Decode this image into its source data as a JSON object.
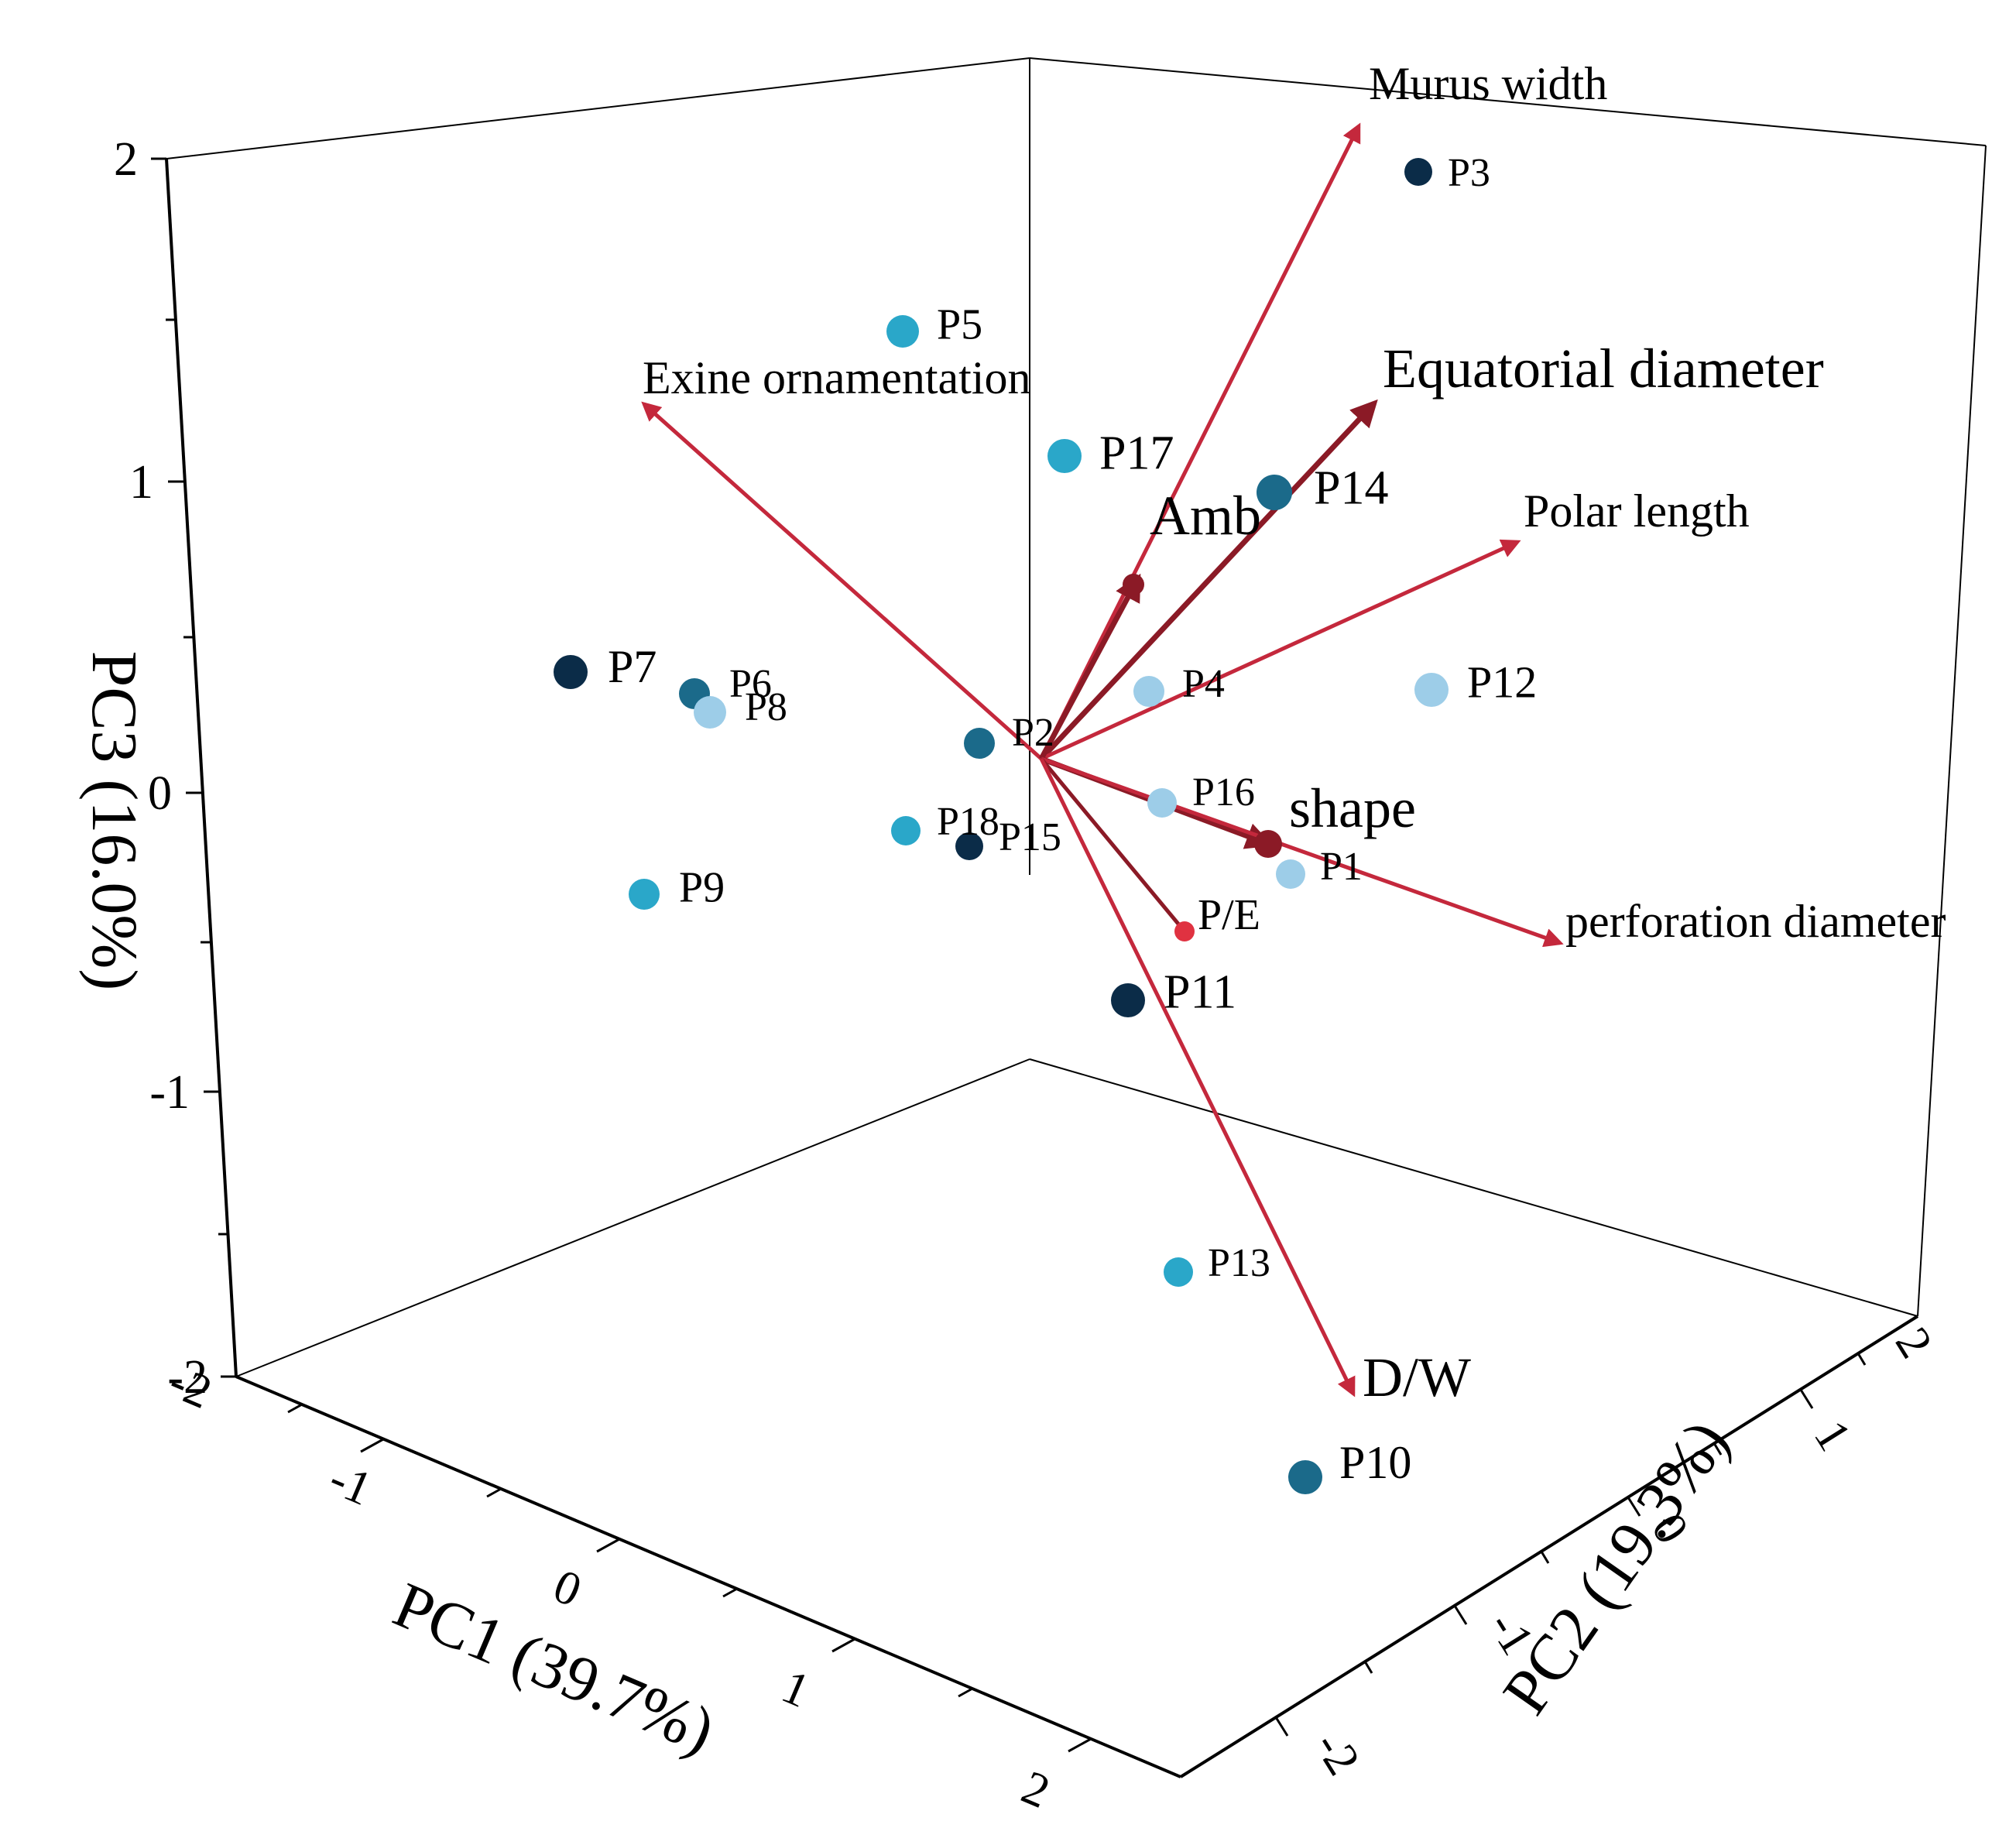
{
  "chart_data": {
    "type": "scatter",
    "subtype": "3d-pca-biplot",
    "axes": {
      "x": {
        "label": "PC1 (39.7%)",
        "range": [
          -2,
          2
        ],
        "ticks": [
          "2",
          "1",
          "0",
          "-1",
          "-2"
        ]
      },
      "y": {
        "label": "PC2 (19.3%)",
        "range": [
          -2,
          2
        ],
        "ticks": [
          "-2",
          "-1",
          "0",
          "1",
          "2"
        ]
      },
      "z": {
        "label": "PC3 (16.0%)",
        "range": [
          -2,
          2
        ],
        "ticks": [
          "2",
          "1",
          "0",
          "-1",
          "-2"
        ]
      }
    },
    "colors": {
      "arrow": "#c4283c",
      "arrow_dark": "#8b1a26",
      "navy": "#0b2c48",
      "teal": "#1b6a8a",
      "cyan": "#2aa7c9",
      "light": "#9dcde8",
      "red": "#e03241"
    },
    "points": [
      {
        "name": "P3",
        "pc3": 1.97,
        "color": "navy"
      },
      {
        "name": "P5",
        "pc3": 1.47,
        "color": "cyan"
      },
      {
        "name": "P17",
        "pc3": 1.08,
        "color": "cyan"
      },
      {
        "name": "P14",
        "pc3": 0.97,
        "color": "teal"
      },
      {
        "name": "P7",
        "pc3": 0.39,
        "color": "navy"
      },
      {
        "name": "P6",
        "pc3": 0.31,
        "color": "teal"
      },
      {
        "name": "P8",
        "pc3": 0.26,
        "color": "light"
      },
      {
        "name": "P4",
        "pc3": 0.33,
        "color": "light"
      },
      {
        "name": "P12",
        "pc3": 0.33,
        "color": "light"
      },
      {
        "name": "P2",
        "pc3": 0.16,
        "color": "teal"
      },
      {
        "name": "P16",
        "pc3": -0.04,
        "color": "light"
      },
      {
        "name": "P18",
        "pc3": -0.13,
        "color": "cyan"
      },
      {
        "name": "P15",
        "pc3": -0.18,
        "color": "navy"
      },
      {
        "name": "P1",
        "pc3": -0.26,
        "color": "light"
      },
      {
        "name": "P9",
        "pc3": -0.33,
        "color": "cyan"
      },
      {
        "name": "P11",
        "pc3": -0.7,
        "color": "navy"
      },
      {
        "name": "P13",
        "pc3": -1.6,
        "color": "cyan"
      },
      {
        "name": "P10",
        "pc3": -2.2,
        "color": "teal"
      }
    ],
    "variables": [
      {
        "name": "Murus width",
        "pc3": 2.02
      },
      {
        "name": "Exine ornamentation",
        "pc3": 1.22
      },
      {
        "name": "Equatorial diameter",
        "pc3": 1.2
      },
      {
        "name": "Polar length",
        "pc3": 0.8
      },
      {
        "name": "Amb",
        "pc3": 0.72
      },
      {
        "name": "shape",
        "pc3": -0.17
      },
      {
        "name": "perforation diameter",
        "pc3": -0.47
      },
      {
        "name": "P/E",
        "pc3": -0.46
      },
      {
        "name": "D/W",
        "pc3": -1.85
      }
    ]
  }
}
